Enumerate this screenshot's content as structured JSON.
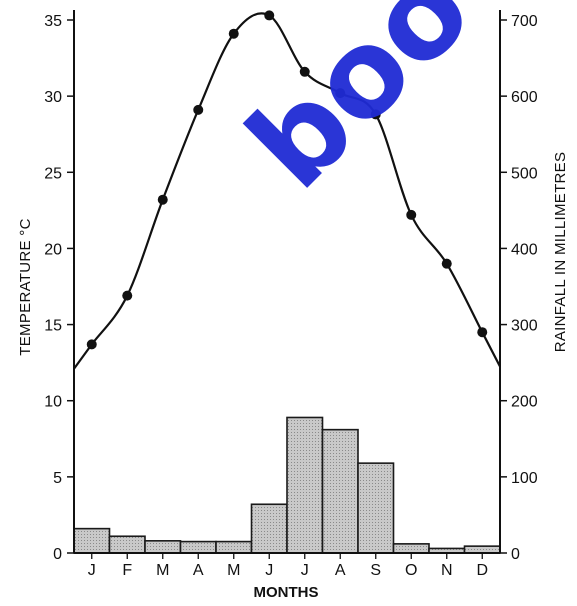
{
  "watermark_text": "boo",
  "colors": {
    "temperature_line": "#111111",
    "rainfall_bar_fill": "#c9c9c9",
    "rainfall_bar_stroke": "#1a1a1a",
    "watermark": "#1f2bd4"
  },
  "chart_data": {
    "type": "climograph",
    "xlabel": "MONTHS",
    "y_left_label": "TEMPERATURE °C",
    "y_right_label": "RAINFALL IN MILLIMETRES",
    "y_left_lim": [
      0,
      35
    ],
    "y_right_lim": [
      0,
      700
    ],
    "y_left_ticks": [
      0,
      5,
      10,
      15,
      20,
      25,
      30,
      35
    ],
    "y_right_ticks": [
      0,
      100,
      200,
      300,
      400,
      500,
      600,
      700
    ],
    "categories": [
      "J",
      "F",
      "M",
      "A",
      "M",
      "J",
      "J",
      "A",
      "S",
      "O",
      "N",
      "D"
    ],
    "grid": false,
    "legend": "none",
    "series": [
      {
        "type": "line",
        "axis": "left",
        "values": [
          13.7,
          16.9,
          23.2,
          29.1,
          34.1,
          35.3,
          31.6,
          30.2,
          28.8,
          22.2,
          19.0,
          14.5
        ]
      },
      {
        "type": "bar",
        "axis": "right",
        "values": [
          32,
          22,
          16,
          15,
          15,
          64,
          178,
          162,
          118,
          12,
          6,
          9
        ]
      }
    ]
  }
}
